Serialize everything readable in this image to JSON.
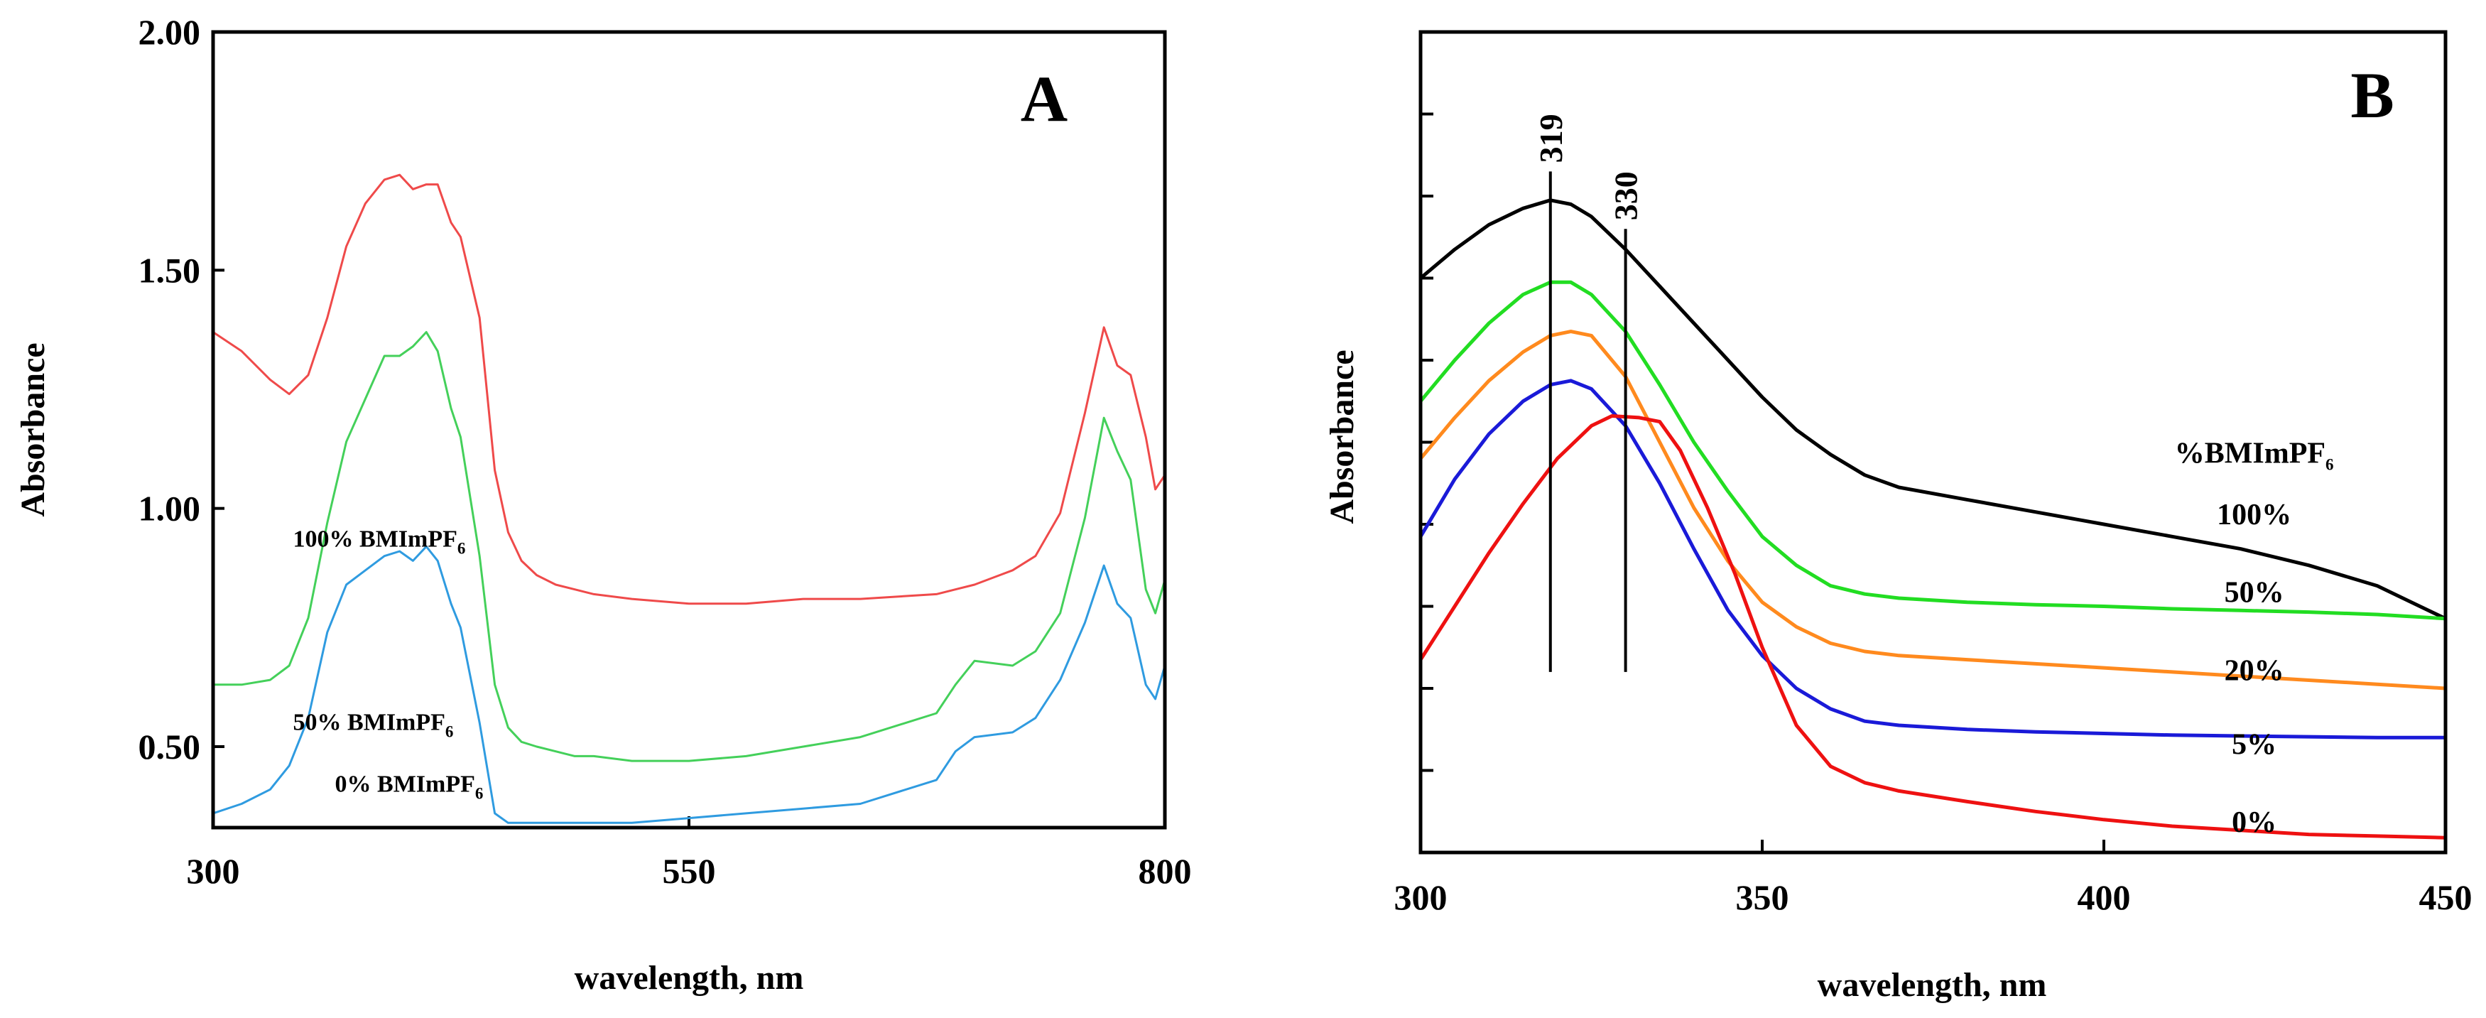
{
  "chart_data": [
    {
      "type": "line",
      "panel": "A",
      "xlabel": "wavelength, nm",
      "ylabel": "Absorbance",
      "xlim": [
        300,
        800
      ],
      "ylim": [
        0.33,
        2.0
      ],
      "x_ticks": [
        {
          "value": 300,
          "label": "300"
        },
        {
          "value": 550,
          "label": "550"
        },
        {
          "value": 800,
          "label": "800"
        }
      ],
      "y_ticks": [
        {
          "value": 0.5,
          "label": "0.50"
        },
        {
          "value": 1.0,
          "label": "1.00"
        },
        {
          "value": 1.5,
          "label": "1.50"
        },
        {
          "value": 2.0,
          "label": "2.00"
        }
      ],
      "series": [
        {
          "name": "100% BMImPF6",
          "label_main": "100% BMImPF",
          "label_sub": "6",
          "label_at": [
            342,
            0.92
          ],
          "color": "#ef4a4a",
          "x": [
            300,
            315,
            330,
            340,
            350,
            360,
            370,
            380,
            390,
            398,
            405,
            412,
            418,
            425,
            430,
            440,
            448,
            455,
            462,
            470,
            480,
            490,
            500,
            520,
            550,
            580,
            610,
            640,
            680,
            690,
            700,
            720,
            732,
            745,
            758,
            768,
            775,
            782,
            790,
            795,
            800
          ],
          "y": [
            1.37,
            1.33,
            1.27,
            1.24,
            1.28,
            1.4,
            1.55,
            1.64,
            1.69,
            1.7,
            1.67,
            1.68,
            1.68,
            1.6,
            1.57,
            1.4,
            1.08,
            0.95,
            0.89,
            0.86,
            0.84,
            0.83,
            0.82,
            0.81,
            0.8,
            0.8,
            0.81,
            0.81,
            0.82,
            0.83,
            0.84,
            0.87,
            0.9,
            0.99,
            1.2,
            1.38,
            1.3,
            1.28,
            1.15,
            1.04,
            1.07
          ]
        },
        {
          "name": "50% BMImPF6",
          "label_main": "50% BMImPF",
          "label_sub": "6",
          "label_at": [
            342,
            0.535
          ],
          "color": "#44d05a",
          "x": [
            300,
            315,
            330,
            340,
            350,
            360,
            370,
            380,
            390,
            398,
            405,
            412,
            418,
            425,
            430,
            440,
            448,
            455,
            462,
            470,
            480,
            490,
            500,
            520,
            550,
            580,
            610,
            640,
            680,
            690,
            700,
            720,
            732,
            745,
            758,
            768,
            775,
            782,
            790,
            795,
            800
          ],
          "y": [
            0.63,
            0.63,
            0.64,
            0.67,
            0.77,
            0.97,
            1.14,
            1.23,
            1.32,
            1.32,
            1.34,
            1.37,
            1.33,
            1.21,
            1.15,
            0.9,
            0.63,
            0.54,
            0.51,
            0.5,
            0.49,
            0.48,
            0.48,
            0.47,
            0.47,
            0.48,
            0.5,
            0.52,
            0.57,
            0.63,
            0.68,
            0.67,
            0.7,
            0.78,
            0.98,
            1.19,
            1.12,
            1.06,
            0.83,
            0.78,
            0.85
          ]
        },
        {
          "name": "0% BMImPF6",
          "label_main": "0% BMImPF",
          "label_sub": "6",
          "label_at": [
            364,
            0.405
          ],
          "color": "#2f9be0",
          "x": [
            300,
            315,
            330,
            340,
            350,
            360,
            370,
            380,
            390,
            398,
            405,
            412,
            418,
            425,
            430,
            440,
            448,
            455,
            462,
            470,
            480,
            490,
            500,
            520,
            550,
            580,
            610,
            640,
            680,
            690,
            700,
            720,
            732,
            745,
            758,
            768,
            775,
            782,
            790,
            795,
            800
          ],
          "y": [
            0.36,
            0.38,
            0.41,
            0.46,
            0.56,
            0.74,
            0.84,
            0.87,
            0.9,
            0.91,
            0.89,
            0.92,
            0.89,
            0.8,
            0.75,
            0.55,
            0.36,
            0.34,
            0.34,
            0.34,
            0.34,
            0.34,
            0.34,
            0.34,
            0.35,
            0.36,
            0.37,
            0.38,
            0.43,
            0.49,
            0.52,
            0.53,
            0.56,
            0.64,
            0.76,
            0.88,
            0.8,
            0.77,
            0.63,
            0.6,
            0.67
          ]
        }
      ]
    },
    {
      "type": "line",
      "panel": "B",
      "xlabel": "wavelength, nm",
      "ylabel": "Absorbance",
      "xlim": [
        300,
        450
      ],
      "ylim": [
        0,
        10
      ],
      "x_ticks": [
        {
          "value": 300,
          "label": "300"
        },
        {
          "value": 350,
          "label": "350"
        },
        {
          "value": 400,
          "label": "400"
        },
        {
          "value": 450,
          "label": "450"
        }
      ],
      "y_ticks_unlabeled": [
        1,
        2,
        3,
        4,
        5,
        6,
        7,
        8,
        9
      ],
      "legend_title_main": "%BMImPF",
      "legend_title_sub": "6",
      "legend_title_at": [
        422,
        4.75
      ],
      "reference_lines": [
        {
          "x": 319,
          "label": "319",
          "y_from": 2.2,
          "y_to": 8.3
        },
        {
          "x": 330,
          "label": "330",
          "y_from": 2.2,
          "y_to": 7.6
        }
      ],
      "series": [
        {
          "name": "100%",
          "label_at": [
            422,
            4.0
          ],
          "color": "#000000",
          "x": [
            300,
            305,
            310,
            315,
            319,
            322,
            325,
            330,
            335,
            340,
            345,
            350,
            355,
            360,
            365,
            370,
            380,
            390,
            400,
            410,
            420,
            430,
            440,
            445,
            450
          ],
          "y": [
            7.0,
            7.35,
            7.65,
            7.85,
            7.95,
            7.9,
            7.75,
            7.35,
            6.9,
            6.45,
            6.0,
            5.55,
            5.15,
            4.85,
            4.6,
            4.45,
            4.3,
            4.15,
            4.0,
            3.85,
            3.7,
            3.5,
            3.25,
            3.05,
            2.85
          ]
        },
        {
          "name": "50%",
          "label_at": [
            422,
            3.05
          ],
          "color": "#22dd22",
          "x": [
            300,
            305,
            310,
            315,
            319,
            322,
            325,
            330,
            335,
            340,
            345,
            350,
            355,
            360,
            365,
            370,
            380,
            390,
            400,
            410,
            420,
            430,
            440,
            450
          ],
          "y": [
            5.5,
            6.0,
            6.45,
            6.8,
            6.95,
            6.95,
            6.8,
            6.35,
            5.7,
            5.0,
            4.4,
            3.85,
            3.5,
            3.25,
            3.15,
            3.1,
            3.05,
            3.02,
            3.0,
            2.97,
            2.95,
            2.93,
            2.9,
            2.85
          ]
        },
        {
          "name": "20%",
          "label_at": [
            422,
            2.1
          ],
          "color": "#ff8a1e",
          "x": [
            300,
            305,
            310,
            315,
            319,
            322,
            325,
            330,
            335,
            340,
            345,
            350,
            355,
            360,
            365,
            370,
            380,
            390,
            400,
            410,
            420,
            430,
            440,
            450
          ],
          "y": [
            4.8,
            5.3,
            5.75,
            6.1,
            6.3,
            6.35,
            6.3,
            5.8,
            5.0,
            4.2,
            3.55,
            3.05,
            2.75,
            2.55,
            2.45,
            2.4,
            2.35,
            2.3,
            2.25,
            2.2,
            2.15,
            2.1,
            2.05,
            2.0
          ]
        },
        {
          "name": "5%",
          "label_at": [
            422,
            1.2
          ],
          "color": "#1a1ad8",
          "x": [
            300,
            305,
            310,
            315,
            319,
            322,
            325,
            330,
            335,
            340,
            345,
            350,
            355,
            360,
            365,
            370,
            380,
            390,
            400,
            410,
            420,
            430,
            440,
            450
          ],
          "y": [
            3.85,
            4.55,
            5.1,
            5.5,
            5.7,
            5.75,
            5.65,
            5.2,
            4.5,
            3.7,
            2.95,
            2.4,
            2.0,
            1.75,
            1.6,
            1.55,
            1.5,
            1.47,
            1.45,
            1.43,
            1.42,
            1.41,
            1.4,
            1.4
          ]
        },
        {
          "name": "0%",
          "label_at": [
            422,
            0.25
          ],
          "color": "#ee1111",
          "x": [
            300,
            305,
            310,
            315,
            320,
            325,
            328,
            332,
            335,
            338,
            342,
            346,
            350,
            355,
            360,
            365,
            370,
            380,
            390,
            400,
            410,
            420,
            430,
            440,
            450
          ],
          "y": [
            2.35,
            3.0,
            3.65,
            4.25,
            4.8,
            5.2,
            5.32,
            5.3,
            5.25,
            4.9,
            4.2,
            3.4,
            2.5,
            1.55,
            1.05,
            0.85,
            0.75,
            0.62,
            0.5,
            0.4,
            0.32,
            0.27,
            0.22,
            0.2,
            0.18
          ]
        }
      ]
    }
  ]
}
